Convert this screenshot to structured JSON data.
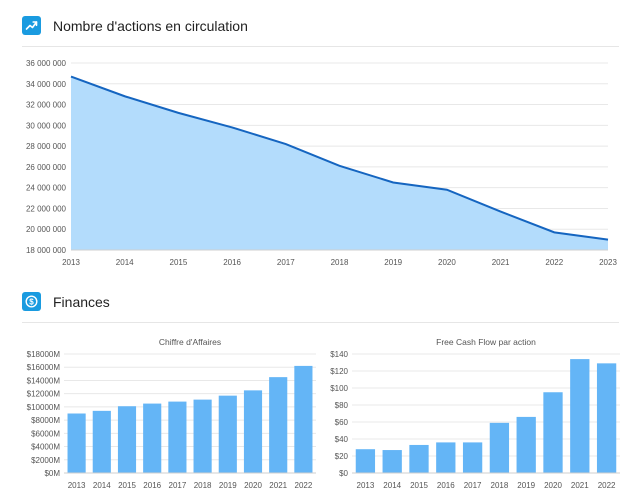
{
  "sections": {
    "shares": {
      "title": "Nombre d'actions en circulation",
      "icon": "trending-up-icon"
    },
    "finances": {
      "title": "Finances",
      "icon": "dollar-coin-icon"
    }
  },
  "colors": {
    "accent": "#1a9be0",
    "line": "#1565c0",
    "area": "#b3dcfc",
    "bar": "#64b5f6",
    "grid": "#e8e8e8"
  },
  "chart_data": [
    {
      "id": "shares-outstanding",
      "type": "area",
      "title": "",
      "x": [
        "2013",
        "2014",
        "2015",
        "2016",
        "2017",
        "2018",
        "2019",
        "2020",
        "2021",
        "2022",
        "2023"
      ],
      "values": [
        34700000,
        32800000,
        31200000,
        29800000,
        28200000,
        26100000,
        24500000,
        23800000,
        21700000,
        19700000,
        19000000
      ],
      "ylim": [
        18000000,
        36000000
      ],
      "yticks": [
        18000000,
        20000000,
        22000000,
        24000000,
        26000000,
        28000000,
        30000000,
        32000000,
        34000000,
        36000000
      ],
      "ytick_labels": [
        "18 000 000",
        "20 000 000",
        "22 000 000",
        "24 000 000",
        "26 000 000",
        "28 000 000",
        "30 000 000",
        "32 000 000",
        "34 000 000",
        "36 000 000"
      ],
      "grid": true
    },
    {
      "id": "revenue",
      "type": "bar",
      "title": "Chiffre d'Affaires",
      "categories": [
        "2013",
        "2014",
        "2015",
        "2016",
        "2017",
        "2018",
        "2019",
        "2020",
        "2021",
        "2022"
      ],
      "values": [
        9000,
        9400,
        10100,
        10500,
        10800,
        11100,
        11700,
        12500,
        14500,
        16200
      ],
      "ylim": [
        0,
        18000
      ],
      "yticks": [
        0,
        2000,
        4000,
        6000,
        8000,
        10000,
        12000,
        14000,
        16000,
        18000
      ],
      "ytick_labels": [
        "$0M",
        "$2000M",
        "$4000M",
        "$6000M",
        "$8000M",
        "$10000M",
        "$12000M",
        "$14000M",
        "$16000M",
        "$18000M"
      ],
      "grid": true
    },
    {
      "id": "fcf-per-share",
      "type": "bar",
      "title": "Free Cash Flow par action",
      "categories": [
        "2013",
        "2014",
        "2015",
        "2016",
        "2017",
        "2018",
        "2019",
        "2020",
        "2021",
        "2022"
      ],
      "values": [
        28,
        27,
        33,
        36,
        36,
        59,
        66,
        95,
        134,
        129
      ],
      "ylim": [
        0,
        140
      ],
      "yticks": [
        0,
        20,
        40,
        60,
        80,
        100,
        120,
        140
      ],
      "ytick_labels": [
        "$0",
        "$20",
        "$40",
        "$60",
        "$80",
        "$100",
        "$120",
        "$140"
      ],
      "grid": true
    }
  ]
}
